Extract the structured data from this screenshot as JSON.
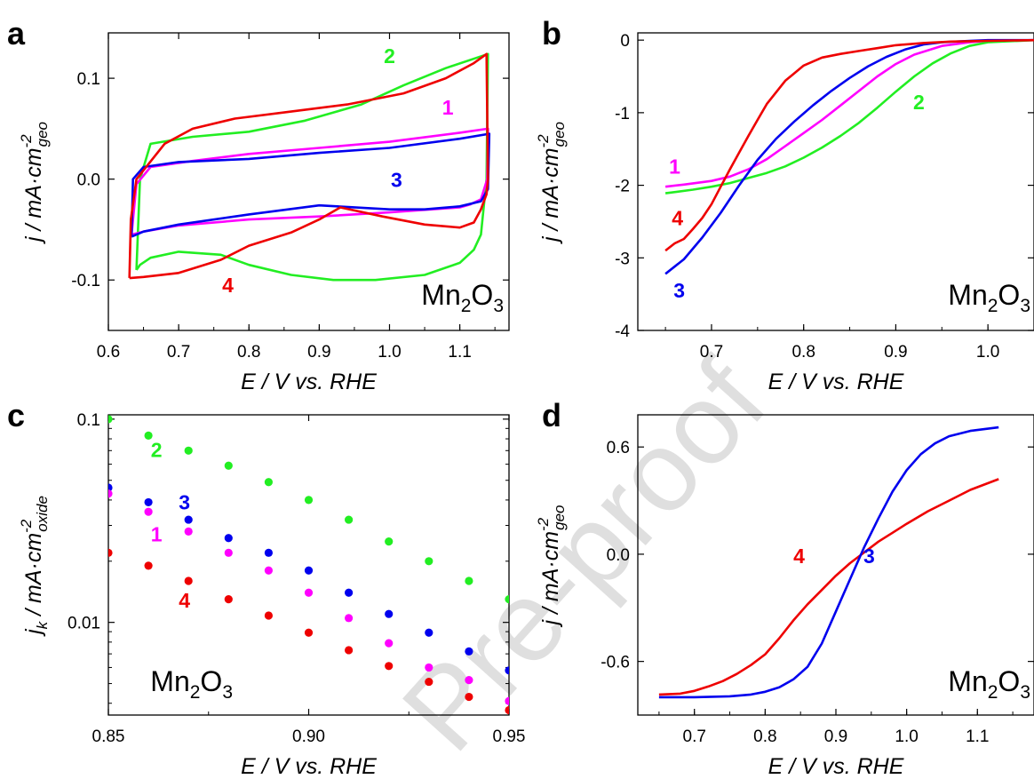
{
  "watermark": "Pre-proof",
  "colors": {
    "1": "#ff00ff",
    "2": "#22ee22",
    "3": "#0000ee",
    "4": "#ee0000"
  },
  "chart_data": [
    {
      "panel": "a",
      "type": "line",
      "ylabel": {
        "base": "j / mA·cm",
        "sup": "-2",
        "sub": "geo"
      },
      "xlabel": "E / V vs. RHE",
      "material": {
        "base": "Mn",
        "sub1": "2",
        "mid": "O",
        "sub2": "3"
      },
      "xlim": [
        0.6,
        1.17
      ],
      "ylim": [
        -0.15,
        0.145
      ],
      "xticks": [
        0.6,
        0.7,
        0.8,
        0.9,
        1.0,
        1.1
      ],
      "xtick_labels": [
        "0.6",
        "0.7",
        "0.8",
        "0.9",
        "1.0",
        "1.1"
      ],
      "yticks": [
        0.1,
        0.0,
        -0.1
      ],
      "ytick_labels": [
        "0.1",
        "0.0",
        "-0.1"
      ],
      "series": [
        {
          "name": "2",
          "color": "#22ee22",
          "label_at": [
            1.0,
            0.115
          ],
          "x": [
            0.64,
            0.645,
            0.66,
            0.72,
            0.8,
            0.88,
            0.96,
            1.02,
            1.08,
            1.14,
            1.138,
            1.13,
            1.12,
            1.1,
            1.05,
            0.98,
            0.92,
            0.86,
            0.8,
            0.76,
            0.7,
            0.66,
            0.645,
            0.64
          ],
          "y": [
            -0.09,
            0.0,
            0.035,
            0.042,
            0.047,
            0.058,
            0.074,
            0.093,
            0.11,
            0.124,
            0.0,
            -0.055,
            -0.07,
            -0.083,
            -0.095,
            -0.1,
            -0.1,
            -0.095,
            -0.085,
            -0.075,
            -0.072,
            -0.078,
            -0.085,
            -0.09
          ]
        },
        {
          "name": "1",
          "color": "#ff00ff",
          "label_at": [
            1.083,
            0.064
          ],
          "x": [
            0.633,
            0.64,
            0.66,
            0.72,
            0.8,
            0.9,
            1.0,
            1.1,
            1.14,
            1.139,
            1.13,
            1.115,
            1.1,
            1.0,
            0.9,
            0.8,
            0.7,
            0.65,
            0.633
          ],
          "y": [
            -0.055,
            -0.005,
            0.012,
            0.018,
            0.025,
            0.031,
            0.037,
            0.046,
            0.05,
            0.0,
            -0.02,
            -0.025,
            -0.028,
            -0.033,
            -0.037,
            -0.04,
            -0.046,
            -0.052,
            -0.055
          ]
        },
        {
          "name": "3",
          "color": "#0000ee",
          "label_at": [
            1.01,
            -0.008
          ],
          "x": [
            0.633,
            0.635,
            0.65,
            0.7,
            0.8,
            0.9,
            1.0,
            1.1,
            1.142,
            1.14,
            1.13,
            1.1,
            1.05,
            1.0,
            0.9,
            0.8,
            0.7,
            0.65,
            0.633
          ],
          "y": [
            -0.057,
            0.0,
            0.012,
            0.017,
            0.02,
            0.026,
            0.031,
            0.04,
            0.045,
            -0.01,
            -0.022,
            -0.027,
            -0.03,
            -0.03,
            -0.026,
            -0.035,
            -0.045,
            -0.052,
            -0.057
          ]
        },
        {
          "name": "4",
          "color": "#ee0000",
          "label_at": [
            0.77,
            -0.112
          ],
          "x": [
            0.63,
            0.632,
            0.64,
            0.68,
            0.72,
            0.78,
            0.86,
            0.94,
            1.02,
            1.08,
            1.12,
            1.138,
            1.14,
            1.138,
            1.13,
            1.12,
            1.1,
            1.05,
            0.99,
            0.93,
            0.9,
            0.86,
            0.8,
            0.76,
            0.7,
            0.65,
            0.632,
            0.63
          ],
          "y": [
            -0.098,
            -0.04,
            0.0,
            0.035,
            0.05,
            0.06,
            0.067,
            0.074,
            0.085,
            0.1,
            0.115,
            0.124,
            0.0,
            -0.015,
            -0.03,
            -0.043,
            -0.048,
            -0.045,
            -0.037,
            -0.028,
            -0.04,
            -0.053,
            -0.066,
            -0.08,
            -0.093,
            -0.097,
            -0.098,
            -0.098
          ]
        }
      ]
    },
    {
      "panel": "b",
      "type": "line",
      "ylabel": {
        "base": "j / mA·cm",
        "sup": "-2",
        "sub": "geo"
      },
      "xlabel": "E / V vs. RHE",
      "material": {
        "base": "Mn",
        "sub1": "2",
        "mid": "O",
        "sub2": "3"
      },
      "xlim": [
        0.62,
        1.05
      ],
      "ylim": [
        -4,
        0.1
      ],
      "xticks": [
        0.7,
        0.8,
        0.9,
        1.0
      ],
      "xtick_labels": [
        "0.7",
        "0.8",
        "0.9",
        "1.0"
      ],
      "yticks": [
        0,
        -1,
        -2,
        -3,
        -4
      ],
      "ytick_labels": [
        "0",
        "-1",
        "-2",
        "-3",
        "-4"
      ],
      "series": [
        {
          "name": "1",
          "color": "#ff00ff",
          "label_at": [
            0.66,
            -1.84
          ],
          "x": [
            0.65,
            0.67,
            0.7,
            0.72,
            0.74,
            0.76,
            0.78,
            0.8,
            0.82,
            0.84,
            0.86,
            0.88,
            0.9,
            0.92,
            0.95,
            0.98,
            1.0,
            1.05
          ],
          "y": [
            -2.02,
            -1.99,
            -1.94,
            -1.88,
            -1.78,
            -1.64,
            -1.46,
            -1.28,
            -1.1,
            -0.9,
            -0.7,
            -0.5,
            -0.33,
            -0.2,
            -0.08,
            -0.03,
            -0.01,
            0.0
          ]
        },
        {
          "name": "2",
          "color": "#22ee22",
          "label_at": [
            0.925,
            -0.95
          ],
          "x": [
            0.65,
            0.68,
            0.7,
            0.72,
            0.74,
            0.76,
            0.78,
            0.8,
            0.82,
            0.84,
            0.86,
            0.88,
            0.9,
            0.92,
            0.94,
            0.96,
            0.98,
            1.0,
            1.05
          ],
          "y": [
            -2.11,
            -2.06,
            -2.02,
            -1.97,
            -1.9,
            -1.83,
            -1.74,
            -1.62,
            -1.48,
            -1.32,
            -1.14,
            -0.93,
            -0.71,
            -0.5,
            -0.32,
            -0.18,
            -0.08,
            -0.03,
            0.0
          ]
        },
        {
          "name": "3",
          "color": "#0000ee",
          "label_at": [
            0.665,
            -3.55
          ],
          "x": [
            0.65,
            0.67,
            0.69,
            0.71,
            0.73,
            0.75,
            0.77,
            0.79,
            0.81,
            0.83,
            0.85,
            0.87,
            0.89,
            0.91,
            0.93,
            0.95,
            0.98,
            1.0,
            1.05
          ],
          "y": [
            -3.22,
            -3.02,
            -2.72,
            -2.38,
            -2.0,
            -1.65,
            -1.36,
            -1.12,
            -0.9,
            -0.7,
            -0.52,
            -0.36,
            -0.23,
            -0.13,
            -0.06,
            -0.03,
            -0.01,
            0.0,
            0.0
          ]
        },
        {
          "name": "4",
          "color": "#ee0000",
          "label_at": [
            0.663,
            -2.55
          ],
          "x": [
            0.65,
            0.66,
            0.67,
            0.68,
            0.69,
            0.7,
            0.71,
            0.72,
            0.73,
            0.74,
            0.75,
            0.76,
            0.78,
            0.8,
            0.82,
            0.84,
            0.86,
            0.88,
            0.9,
            0.93,
            0.96,
            1.0,
            1.05
          ],
          "y": [
            -2.9,
            -2.8,
            -2.74,
            -2.6,
            -2.45,
            -2.26,
            -2.02,
            -1.78,
            -1.55,
            -1.32,
            -1.1,
            -0.88,
            -0.56,
            -0.35,
            -0.24,
            -0.19,
            -0.15,
            -0.11,
            -0.07,
            -0.04,
            -0.02,
            -0.01,
            0.0
          ]
        }
      ]
    },
    {
      "panel": "c",
      "type": "scatter",
      "ylabel": {
        "base": "j",
        "sub0": "k",
        "mid": " / mA·cm",
        "sup": "-2",
        "sub": "oxide"
      },
      "xlabel": "E / V vs. RHE",
      "material": {
        "base": "Mn",
        "sub1": "2",
        "mid": "O",
        "sub2": "3"
      },
      "yscale": "log",
      "xlim": [
        0.85,
        0.95
      ],
      "ylim": [
        0.0035,
        0.105
      ],
      "xticks": [
        0.85,
        0.9,
        0.95
      ],
      "xtick_labels": [
        "0.85",
        "0.90",
        "0.95"
      ],
      "yticks": [
        0.1,
        0.01
      ],
      "ytick_labels": [
        "0.1",
        "0.01"
      ],
      "x": [
        0.85,
        0.86,
        0.87,
        0.88,
        0.89,
        0.9,
        0.91,
        0.92,
        0.93,
        0.94,
        0.95
      ],
      "series": [
        {
          "name": "2",
          "color": "#22ee22",
          "label_at": [
            0.862,
            0.065
          ],
          "values": [
            0.1,
            0.083,
            0.07,
            0.059,
            0.049,
            0.04,
            0.032,
            0.025,
            0.02,
            0.016,
            0.013
          ]
        },
        {
          "name": "3",
          "color": "#0000ee",
          "label_at": [
            0.869,
            0.036
          ],
          "values": [
            0.046,
            0.039,
            0.032,
            0.026,
            0.022,
            0.018,
            0.014,
            0.011,
            0.0089,
            0.0072,
            0.0058
          ]
        },
        {
          "name": "1",
          "color": "#ff00ff",
          "label_at": [
            0.862,
            0.025
          ],
          "values": [
            0.043,
            0.035,
            0.028,
            0.022,
            0.018,
            0.014,
            0.0105,
            0.0079,
            0.006,
            0.0052,
            0.0041
          ]
        },
        {
          "name": "4",
          "color": "#ee0000",
          "label_at": [
            0.869,
            0.0118
          ],
          "values": [
            0.022,
            0.019,
            0.016,
            0.013,
            0.0108,
            0.0089,
            0.0073,
            0.0061,
            0.0051,
            0.0043,
            0.0037
          ]
        }
      ]
    },
    {
      "panel": "d",
      "type": "line",
      "ylabel": {
        "base": "j / mA·cm",
        "sup": "-2",
        "sub": "geo"
      },
      "xlabel": "E / V vs. RHE",
      "material": {
        "base": "Mn",
        "sub1": "2",
        "mid": "O",
        "sub2": "3"
      },
      "xlim": [
        0.62,
        1.18
      ],
      "ylim": [
        -0.9,
        0.78
      ],
      "xticks": [
        0.7,
        0.8,
        0.9,
        1.0,
        1.1
      ],
      "xtick_labels": [
        "0.7",
        "0.8",
        "0.9",
        "1.0",
        "1.1"
      ],
      "yticks": [
        0.6,
        0.0,
        -0.6
      ],
      "ytick_labels": [
        "0.6",
        "0.0",
        "-0.6"
      ],
      "series": [
        {
          "name": "4",
          "color": "#ee0000",
          "label_at": [
            0.848,
            -0.05
          ],
          "x": [
            0.65,
            0.68,
            0.7,
            0.72,
            0.74,
            0.76,
            0.78,
            0.8,
            0.82,
            0.84,
            0.86,
            0.88,
            0.9,
            0.92,
            0.94,
            0.96,
            0.98,
            1.0,
            1.03,
            1.06,
            1.09,
            1.13
          ],
          "y": [
            -0.785,
            -0.78,
            -0.765,
            -0.74,
            -0.71,
            -0.67,
            -0.62,
            -0.56,
            -0.47,
            -0.37,
            -0.28,
            -0.2,
            -0.12,
            -0.05,
            0.01,
            0.07,
            0.12,
            0.17,
            0.24,
            0.3,
            0.36,
            0.42
          ]
        },
        {
          "name": "3",
          "color": "#0000ee",
          "label_at": [
            0.947,
            -0.05
          ],
          "x": [
            0.65,
            0.7,
            0.75,
            0.78,
            0.8,
            0.82,
            0.84,
            0.86,
            0.88,
            0.9,
            0.92,
            0.94,
            0.96,
            0.98,
            1.0,
            1.02,
            1.04,
            1.06,
            1.09,
            1.13
          ],
          "y": [
            -0.8,
            -0.8,
            -0.795,
            -0.785,
            -0.77,
            -0.745,
            -0.7,
            -0.63,
            -0.5,
            -0.32,
            -0.14,
            0.04,
            0.2,
            0.35,
            0.47,
            0.56,
            0.62,
            0.66,
            0.69,
            0.71
          ]
        }
      ]
    }
  ]
}
